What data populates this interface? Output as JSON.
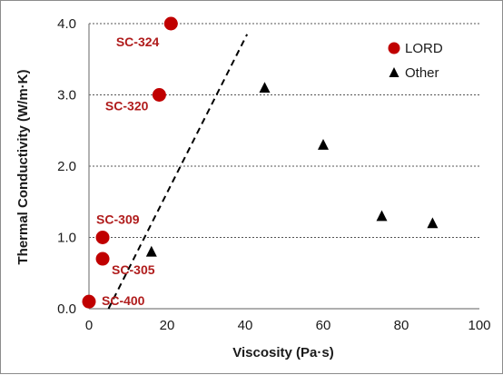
{
  "chart_data": {
    "type": "scatter",
    "xlabel": "Viscosity (Pa·s)",
    "ylabel": "Thermal Conductivity (W/m·K)",
    "xlim": [
      0,
      100
    ],
    "ylim": [
      0,
      4
    ],
    "x_ticks": [
      "0",
      "20",
      "40",
      "60",
      "80",
      "100"
    ],
    "y_ticks": [
      "0.0",
      "1.0",
      "2.0",
      "3.0",
      "4.0"
    ],
    "grid": "horizontal dashed",
    "legend": "top-right",
    "series": [
      {
        "name": "LORD",
        "marker": "circle",
        "color": "#c00000",
        "points": [
          {
            "x": 21,
            "y": 4.0,
            "label": "SC-324"
          },
          {
            "x": 18,
            "y": 3.0,
            "label": "SC-320"
          },
          {
            "x": 3.5,
            "y": 1.0,
            "label": "SC-309"
          },
          {
            "x": 3.5,
            "y": 0.7,
            "label": "SC-305"
          },
          {
            "x": 0,
            "y": 0.1,
            "label": "SC-400"
          }
        ]
      },
      {
        "name": "Other",
        "marker": "triangle",
        "color": "#000000",
        "points": [
          {
            "x": 45,
            "y": 3.1
          },
          {
            "x": 60,
            "y": 2.3
          },
          {
            "x": 75,
            "y": 1.3
          },
          {
            "x": 88,
            "y": 1.2
          },
          {
            "x": 16,
            "y": 0.8
          }
        ]
      }
    ],
    "trendline": {
      "style": "dashed",
      "color": "#000000",
      "x": [
        5,
        40.5
      ],
      "y": [
        0,
        3.85
      ]
    }
  }
}
